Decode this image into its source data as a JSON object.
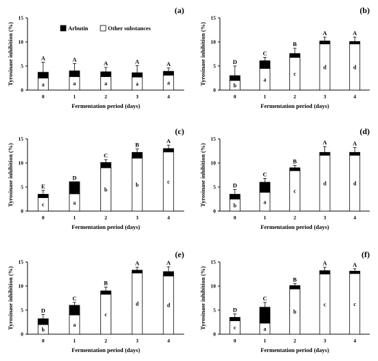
{
  "figure": {
    "legend": {
      "arbutin": "Arbutin",
      "other": "Other substances"
    },
    "colors": {
      "arbutin": "#000000",
      "other": "#ffffff",
      "axis": "#000000"
    }
  },
  "chart_data": [
    {
      "panel": "(a)",
      "type": "bar",
      "stacked": true,
      "xlabel": "Fermentation period (days)",
      "ylabel": "Tyrosinase inhibition (%)",
      "categories": [
        "0",
        "1",
        "2",
        "3",
        "4"
      ],
      "ylim": [
        0,
        15
      ],
      "yticks": [
        0,
        5,
        10,
        15
      ],
      "series": [
        {
          "name": "Other substances",
          "values": [
            2.5,
            2.8,
            2.8,
            2.7,
            3.1
          ]
        },
        {
          "name": "Arbutin",
          "values": [
            1.2,
            1.2,
            1.0,
            0.9,
            0.8
          ]
        }
      ],
      "errors": [
        2.1,
        1.5,
        0.9,
        1.5,
        0.7
      ],
      "letters_upper": [
        "A",
        "A",
        "A",
        "A",
        "A"
      ],
      "letters_lower": [
        "a",
        "a",
        "a",
        "a",
        "a"
      ],
      "show_legend": true
    },
    {
      "panel": "(b)",
      "type": "bar",
      "stacked": true,
      "xlabel": "Fermentation period (days)",
      "ylabel": "Tyrosinase inhibition (%)",
      "categories": [
        "0",
        "1",
        "2",
        "3",
        "4"
      ],
      "ylim": [
        0,
        15
      ],
      "yticks": [
        0,
        5,
        10,
        15
      ],
      "series": [
        {
          "name": "Other substances",
          "values": [
            2.0,
            4.5,
            6.8,
            9.6,
            9.6
          ]
        },
        {
          "name": "Arbutin",
          "values": [
            1.0,
            1.6,
            0.8,
            0.6,
            0.5
          ]
        }
      ],
      "errors": [
        2.0,
        0.7,
        1.1,
        0.8,
        0.9
      ],
      "letters_upper": [
        "D",
        "C",
        "B",
        "A",
        "A"
      ],
      "letters_lower": [
        "b",
        "a",
        "c",
        "d",
        "d"
      ],
      "show_legend": false
    },
    {
      "panel": "(c)",
      "type": "bar",
      "stacked": true,
      "xlabel": "Fermentation period (days)",
      "ylabel": "Tyrosinase inhibition (%)",
      "categories": [
        "0",
        "1",
        "2",
        "3",
        "4"
      ],
      "ylim": [
        0,
        15
      ],
      "yticks": [
        0,
        5,
        10,
        15
      ],
      "series": [
        {
          "name": "Other substances",
          "values": [
            2.8,
            3.6,
            9.0,
            11.0,
            12.3
          ]
        },
        {
          "name": "Arbutin",
          "values": [
            0.7,
            2.5,
            1.1,
            1.2,
            0.7
          ]
        }
      ],
      "errors": [
        0.8,
        0.0,
        0.6,
        0.7,
        0.7
      ],
      "letters_upper": [
        "E",
        "D",
        "C",
        "B",
        "A"
      ],
      "letters_lower": [
        "c",
        "a",
        "b",
        "b",
        "c"
      ],
      "show_legend": false
    },
    {
      "panel": "(d)",
      "type": "bar",
      "stacked": true,
      "xlabel": "Fermentation period (days)",
      "ylabel": "Tyrosinase inhibition (%)",
      "categories": [
        "0",
        "1",
        "2",
        "3",
        "4"
      ],
      "ylim": [
        0,
        15
      ],
      "yticks": [
        0,
        5,
        10,
        15
      ],
      "series": [
        {
          "name": "Other substances",
          "values": [
            2.5,
            3.9,
            8.4,
            11.6,
            11.6
          ]
        },
        {
          "name": "Arbutin",
          "values": [
            1.0,
            2.1,
            0.6,
            0.6,
            0.6
          ]
        }
      ],
      "errors": [
        1.0,
        0.8,
        0.5,
        1.2,
        1.0
      ],
      "letters_upper": [
        "D",
        "C",
        "B",
        "A",
        "A"
      ],
      "letters_lower": [
        "b",
        "a",
        "c",
        "d",
        "d"
      ],
      "show_legend": false
    },
    {
      "panel": "(e)",
      "type": "bar",
      "stacked": true,
      "xlabel": "Fermentation period (days)",
      "ylabel": "Tyrosinase inhibition (%)",
      "categories": [
        "0",
        "1",
        "2",
        "3",
        "4"
      ],
      "ylim": [
        0,
        15
      ],
      "yticks": [
        0,
        5,
        10,
        15
      ],
      "series": [
        {
          "name": "Other substances",
          "values": [
            2.0,
            4.0,
            8.3,
            12.7,
            12.1
          ]
        },
        {
          "name": "Arbutin",
          "values": [
            1.2,
            2.0,
            0.7,
            0.6,
            0.9
          ]
        }
      ],
      "errors": [
        0.9,
        0.6,
        0.8,
        0.6,
        1.0
      ],
      "letters_upper": [
        "D",
        "C",
        "B",
        "A",
        "A"
      ],
      "letters_lower": [
        "b",
        "a",
        "c",
        "d",
        "d"
      ],
      "show_legend": false
    },
    {
      "panel": "(f)",
      "type": "bar",
      "stacked": true,
      "xlabel": "Fermentation period (days)",
      "ylabel": "Tyrosinase inhibition (%)",
      "categories": [
        "0",
        "1",
        "2",
        "3",
        "4"
      ],
      "ylim": [
        0,
        15
      ],
      "yticks": [
        0,
        5,
        10,
        15
      ],
      "series": [
        {
          "name": "Other substances",
          "values": [
            2.8,
            2.3,
            9.4,
            12.5,
            12.6
          ]
        },
        {
          "name": "Arbutin",
          "values": [
            0.7,
            3.3,
            0.7,
            0.7,
            0.5
          ]
        }
      ],
      "errors": [
        0.7,
        1.0,
        0.4,
        0.7,
        0.5
      ],
      "letters_upper": [
        "D",
        "C",
        "B",
        "A",
        "A"
      ],
      "letters_lower": [
        "c",
        "a",
        "b",
        "c",
        "c"
      ],
      "show_legend": false
    }
  ]
}
